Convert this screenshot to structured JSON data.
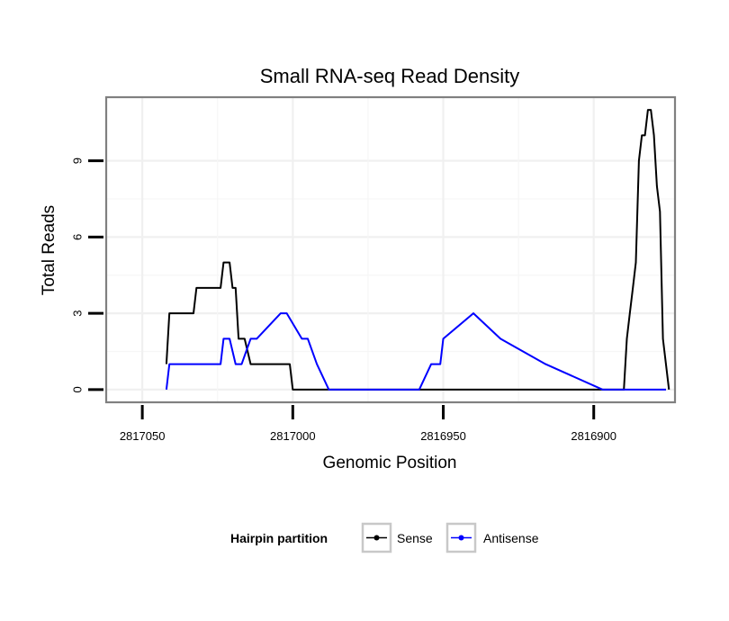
{
  "chart_data": {
    "type": "line",
    "title": "Small RNA-seq Read Density",
    "xlabel": "Genomic Position",
    "ylabel": "Total Reads",
    "x_reversed": true,
    "xlim": [
      2817062,
      2816873
    ],
    "ylim": [
      -0.5,
      11.5
    ],
    "x_ticks": [
      2817050,
      2817000,
      2816950,
      2816900
    ],
    "x_tick_labels": [
      "2817050",
      "2817000",
      "2816950",
      "2816900"
    ],
    "y_ticks": [
      0,
      3,
      6,
      9
    ],
    "y_tick_labels": [
      "0",
      "3",
      "6",
      "9"
    ],
    "grid": true,
    "legend": {
      "title": "Hairpin partition",
      "position": "bottom",
      "entries": [
        "Sense",
        "Antisense"
      ]
    },
    "series": [
      {
        "name": "Sense",
        "color": "#000000",
        "x": [
          2817042,
          2817041,
          2817040,
          2817033,
          2817032,
          2817024,
          2817023,
          2817021,
          2817020,
          2817019,
          2817018,
          2817016,
          2817014,
          2817013,
          2817001,
          2817000,
          2816890,
          2816889,
          2816888,
          2816887,
          2816886,
          2816885,
          2816884,
          2816883,
          2816882,
          2816881,
          2816880,
          2816879,
          2816878,
          2816877,
          2816875
        ],
        "y": [
          1,
          3,
          3,
          3,
          4,
          4,
          5,
          5,
          4,
          4,
          2,
          2,
          1,
          1,
          1,
          0,
          0,
          2,
          3,
          4,
          5,
          9,
          10,
          10,
          11,
          11,
          10,
          8,
          7,
          2,
          0
        ]
      },
      {
        "name": "Antisense",
        "color": "#0000ff",
        "x": [
          2817042,
          2817041,
          2817033,
          2817024,
          2817023,
          2817021,
          2817019,
          2817017,
          2817014,
          2817012,
          2817004,
          2817002,
          2816997,
          2816995,
          2816992,
          2816988,
          2816974,
          2816966,
          2816958,
          2816954,
          2816953,
          2816951,
          2816950,
          2816940,
          2816931,
          2816916,
          2816897,
          2816876
        ],
        "y": [
          0,
          1,
          1,
          1,
          2,
          2,
          1,
          1,
          2,
          2,
          3,
          3,
          2,
          2,
          1,
          0,
          0,
          0,
          0,
          1,
          1,
          1,
          2,
          3,
          2,
          1,
          0,
          0
        ]
      }
    ]
  }
}
